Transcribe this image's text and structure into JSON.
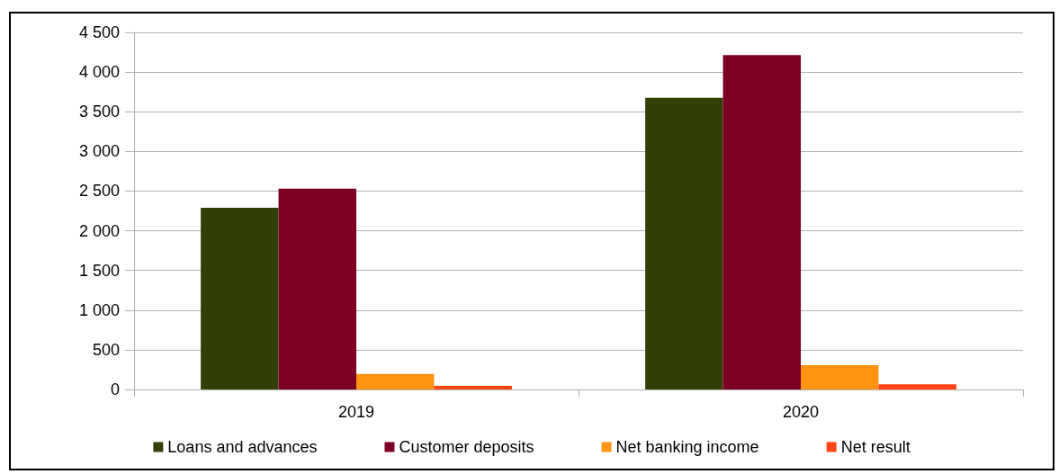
{
  "chart_data": {
    "type": "bar",
    "categories": [
      "2019",
      "2020"
    ],
    "series": [
      {
        "name": "Loans and advances",
        "color": "#323f06",
        "values": [
          2290,
          3675
        ]
      },
      {
        "name": "Customer deposits",
        "color": "#7b0024",
        "values": [
          2530,
          4215
        ]
      },
      {
        "name": "Net banking income",
        "color": "#ff9412",
        "values": [
          195,
          305
        ]
      },
      {
        "name": "Net result",
        "color": "#ff4513",
        "values": [
          45,
          65
        ]
      }
    ],
    "ylim": [
      0,
      4500
    ],
    "yticks": [
      {
        "value": 0,
        "label": "0"
      },
      {
        "value": 500,
        "label": "500"
      },
      {
        "value": 1000,
        "label": "1 000"
      },
      {
        "value": 1500,
        "label": "1 500"
      },
      {
        "value": 2000,
        "label": "2 000"
      },
      {
        "value": 2500,
        "label": "2 500"
      },
      {
        "value": 3000,
        "label": "3 000"
      },
      {
        "value": 3500,
        "label": "3 500"
      },
      {
        "value": 4000,
        "label": "4 000"
      },
      {
        "value": 4500,
        "label": "4 500"
      }
    ],
    "grid": "y",
    "legend": "bottom"
  }
}
